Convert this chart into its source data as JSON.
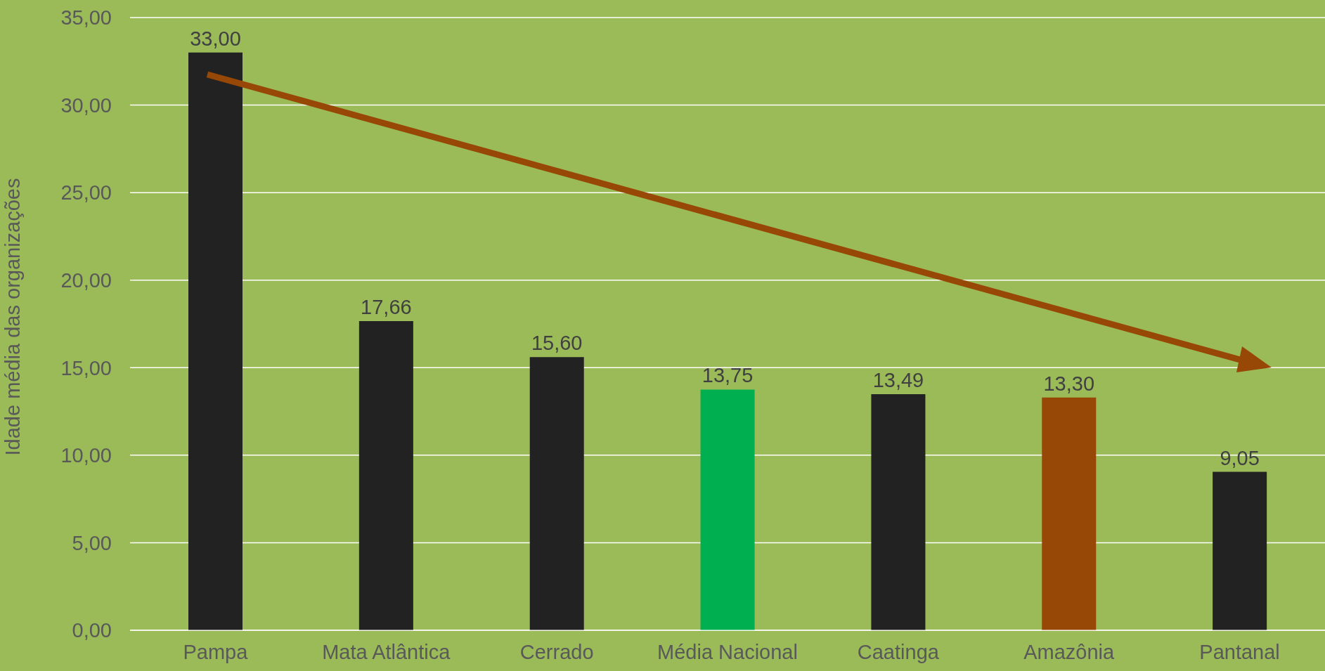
{
  "chart_data": {
    "type": "bar",
    "ylabel": "Idade média das organizações",
    "categories": [
      "Pampa",
      "Mata Atlântica",
      "Cerrado",
      "Média Nacional",
      "Caatinga",
      "Amazônia",
      "Pantanal"
    ],
    "values": [
      33,
      17.66,
      15.6,
      13.75,
      13.49,
      13.3,
      9.05
    ],
    "colors": [
      "#222222",
      "#222222",
      "#222222",
      "#00b050",
      "#222222",
      "#974706",
      "#222222"
    ],
    "value_labels": [
      "33,00",
      "17,66",
      "15,60",
      "13,75",
      "13,49",
      "13,30",
      "9,05"
    ],
    "ylim": [
      0,
      35
    ],
    "yticks": [
      {
        "value": 0,
        "label": "0,00"
      },
      {
        "value": 5,
        "label": "5,00"
      },
      {
        "value": 10,
        "label": "10,00"
      },
      {
        "value": 15,
        "label": "15,00"
      },
      {
        "value": 20,
        "label": "20,00"
      },
      {
        "value": 25,
        "label": "25,00"
      },
      {
        "value": 30,
        "label": "30,00"
      },
      {
        "value": 35,
        "label": "35,00"
      }
    ],
    "grid": "y",
    "legend": false
  }
}
